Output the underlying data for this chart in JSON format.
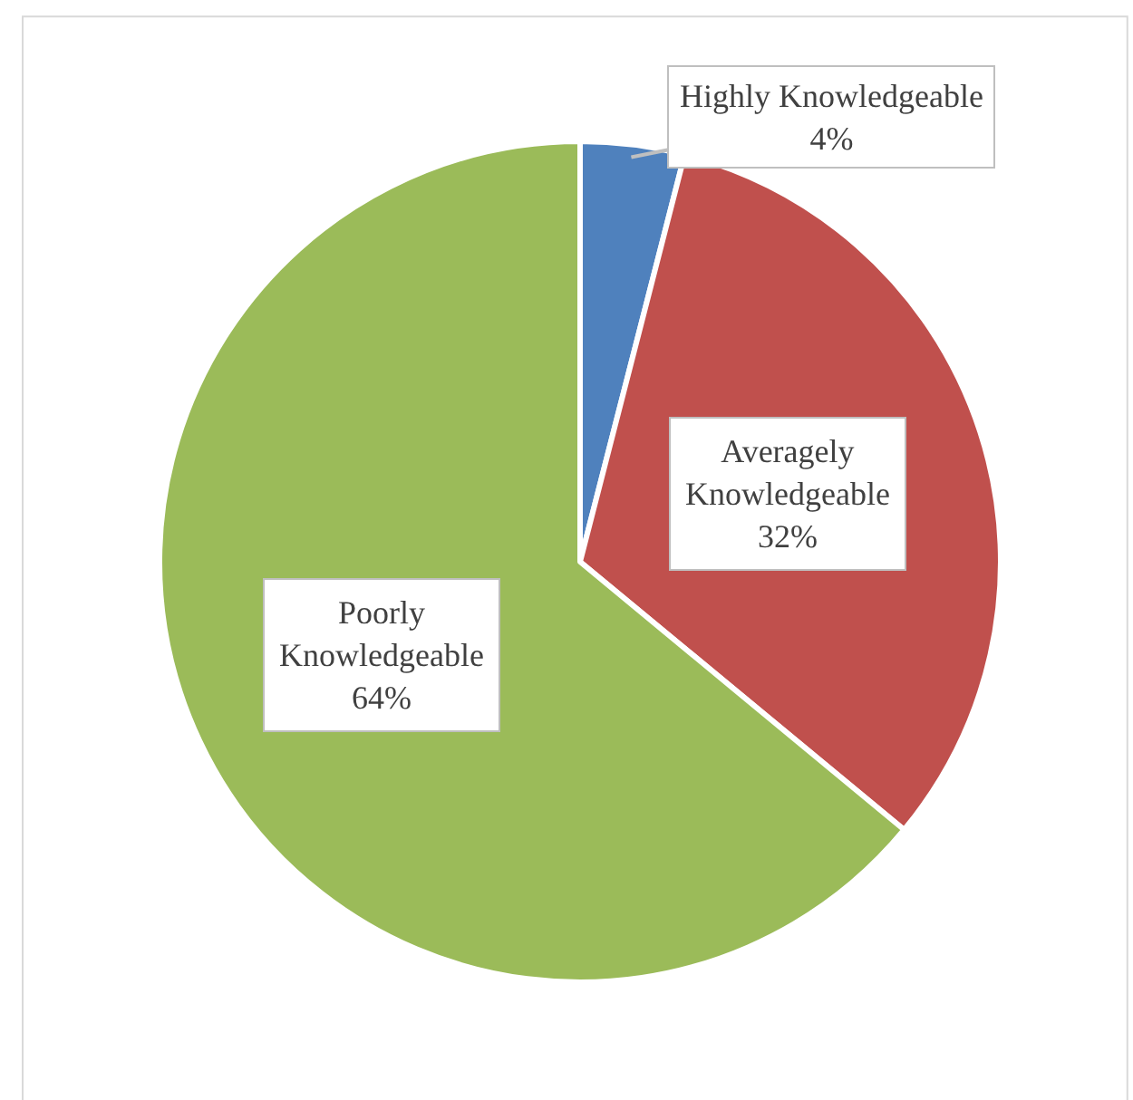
{
  "chart_data": {
    "type": "pie",
    "categories": [
      "Highly Knowledgeable",
      "Averagely Knowledgeable",
      "Poorly Knowledgeable"
    ],
    "values": [
      4,
      32,
      64
    ],
    "colors": [
      "#4f81bd",
      "#c0504d",
      "#9bbb59"
    ],
    "value_labels": [
      "4%",
      "32%",
      "64%"
    ],
    "legend": false
  }
}
